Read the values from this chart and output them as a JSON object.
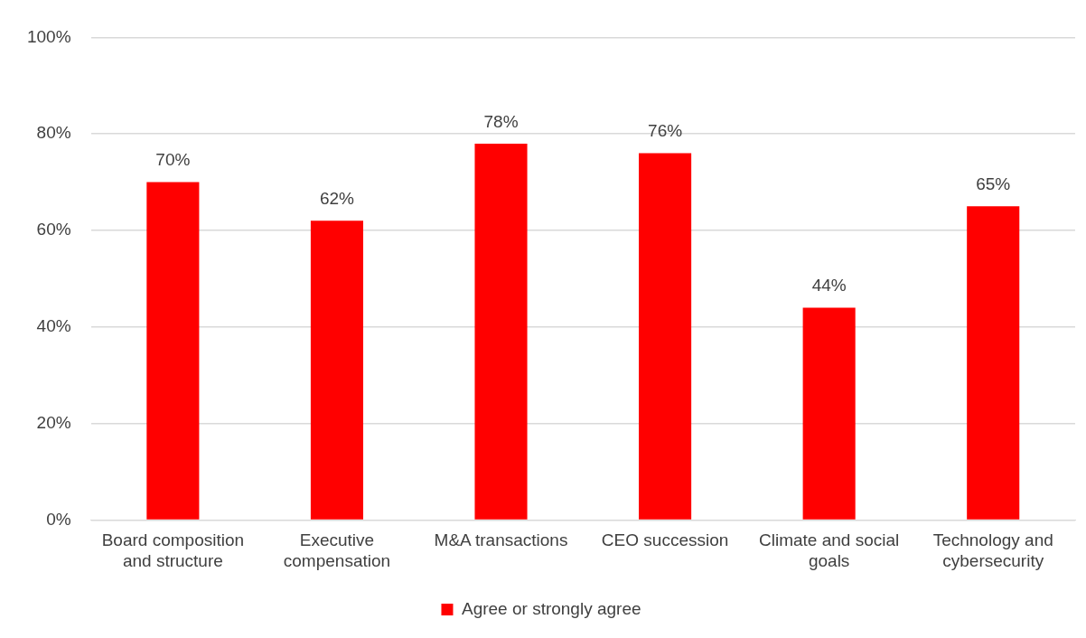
{
  "chart_data": {
    "type": "bar",
    "categories": [
      "Board composition and structure",
      "Executive compensation",
      "M&A transactions",
      "CEO succession",
      "Climate and social goals",
      "Technology and cybersecurity"
    ],
    "series": [
      {
        "name": "Agree or strongly agree",
        "color": "#ff0000",
        "values": [
          70,
          62,
          78,
          76,
          44,
          65
        ],
        "value_labels": [
          "70%",
          "62%",
          "78%",
          "76%",
          "44%",
          "65%"
        ]
      }
    ],
    "ylim": [
      0,
      100
    ],
    "yticks": [
      {
        "value": 0,
        "label": "0%"
      },
      {
        "value": 20,
        "label": "20%"
      },
      {
        "value": 40,
        "label": "40%"
      },
      {
        "value": 60,
        "label": "60%"
      },
      {
        "value": 80,
        "label": "80%"
      },
      {
        "value": 100,
        "label": "100%"
      }
    ],
    "grid": "y",
    "legend": "bottom"
  }
}
